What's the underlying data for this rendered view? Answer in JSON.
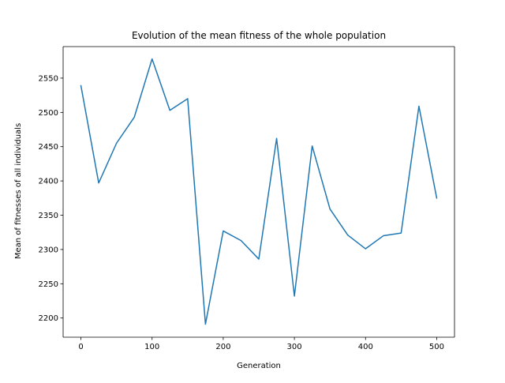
{
  "chart_data": {
    "type": "line",
    "title": "Evolution of the mean fitness of the whole population",
    "xlabel": "Generation",
    "ylabel": "Mean of fitnesses of all individuals",
    "xlim": [
      -25,
      525
    ],
    "ylim": [
      2172,
      2596
    ],
    "xticks": [
      0,
      100,
      200,
      300,
      400,
      500
    ],
    "yticks": [
      2200,
      2250,
      2300,
      2350,
      2400,
      2450,
      2500,
      2550
    ],
    "grid": false,
    "series": [
      {
        "color": "#1f77b4",
        "x": [
          0,
          25,
          50,
          75,
          100,
          125,
          150,
          175,
          200,
          225,
          250,
          275,
          300,
          325,
          350,
          375,
          400,
          425,
          450,
          475,
          500
        ],
        "y": [
          2539,
          2397,
          2455,
          2493,
          2578,
          2503,
          2520,
          2191,
          2327,
          2313,
          2286,
          2462,
          2232,
          2451,
          2359,
          2321,
          2301,
          2320,
          2324,
          2509,
          2375
        ]
      }
    ]
  }
}
